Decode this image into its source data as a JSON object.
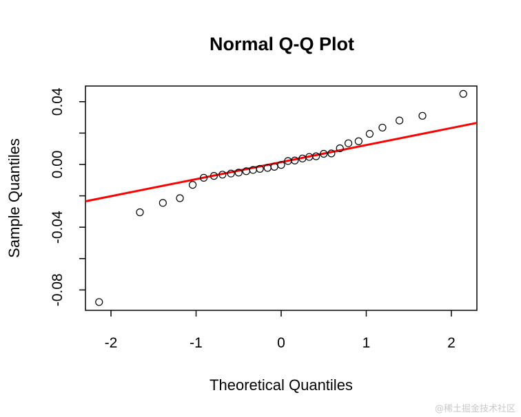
{
  "chart_data": {
    "type": "scatter",
    "title": "Normal Q-Q Plot",
    "xlabel": "Theoretical Quantiles",
    "ylabel": "Sample Quantiles",
    "xlim": [
      -2.3,
      2.3
    ],
    "ylim": [
      -0.093,
      0.05
    ],
    "x_ticks": [
      -2,
      -1,
      0,
      1,
      2
    ],
    "x_tick_labels": [
      "-2",
      "-1",
      "0",
      "1",
      "2"
    ],
    "y_ticks": [
      -0.08,
      -0.06,
      -0.04,
      -0.02,
      0.0,
      0.02,
      0.04
    ],
    "y_tick_labels": [
      "-0.08",
      "",
      "-0.04",
      "",
      "0.00",
      "",
      "0.04"
    ],
    "grid": false,
    "series": [
      {
        "marker": "open-circle",
        "color": "#000000",
        "points": [
          {
            "x": -2.14,
            "y": -0.0877
          },
          {
            "x": -1.66,
            "y": -0.0305
          },
          {
            "x": -1.39,
            "y": -0.0245
          },
          {
            "x": -1.19,
            "y": -0.0215
          },
          {
            "x": -1.04,
            "y": -0.013
          },
          {
            "x": -0.91,
            "y": -0.0085
          },
          {
            "x": -0.79,
            "y": -0.0073
          },
          {
            "x": -0.69,
            "y": -0.0065
          },
          {
            "x": -0.59,
            "y": -0.0058
          },
          {
            "x": -0.5,
            "y": -0.0052
          },
          {
            "x": -0.41,
            "y": -0.0043
          },
          {
            "x": -0.33,
            "y": -0.0035
          },
          {
            "x": -0.25,
            "y": -0.0028
          },
          {
            "x": -0.16,
            "y": -0.0022
          },
          {
            "x": -0.08,
            "y": -0.0015
          },
          {
            "x": 0.0,
            "y": -0.0003
          },
          {
            "x": 0.08,
            "y": 0.0022
          },
          {
            "x": 0.16,
            "y": 0.0025
          },
          {
            "x": 0.25,
            "y": 0.0038
          },
          {
            "x": 0.33,
            "y": 0.0048
          },
          {
            "x": 0.41,
            "y": 0.0052
          },
          {
            "x": 0.5,
            "y": 0.0068
          },
          {
            "x": 0.59,
            "y": 0.007
          },
          {
            "x": 0.69,
            "y": 0.0103
          },
          {
            "x": 0.79,
            "y": 0.0135
          },
          {
            "x": 0.91,
            "y": 0.0148
          },
          {
            "x": 1.04,
            "y": 0.0195
          },
          {
            "x": 1.19,
            "y": 0.0235
          },
          {
            "x": 1.39,
            "y": 0.028
          },
          {
            "x": 1.66,
            "y": 0.031
          },
          {
            "x": 2.14,
            "y": 0.045
          }
        ]
      }
    ],
    "reference_line": {
      "color": "#ff0000",
      "from": {
        "x": -2.3,
        "y": -0.0235
      },
      "to": {
        "x": 2.3,
        "y": 0.0265
      }
    }
  },
  "watermark": "@稀土掘金技术社区"
}
